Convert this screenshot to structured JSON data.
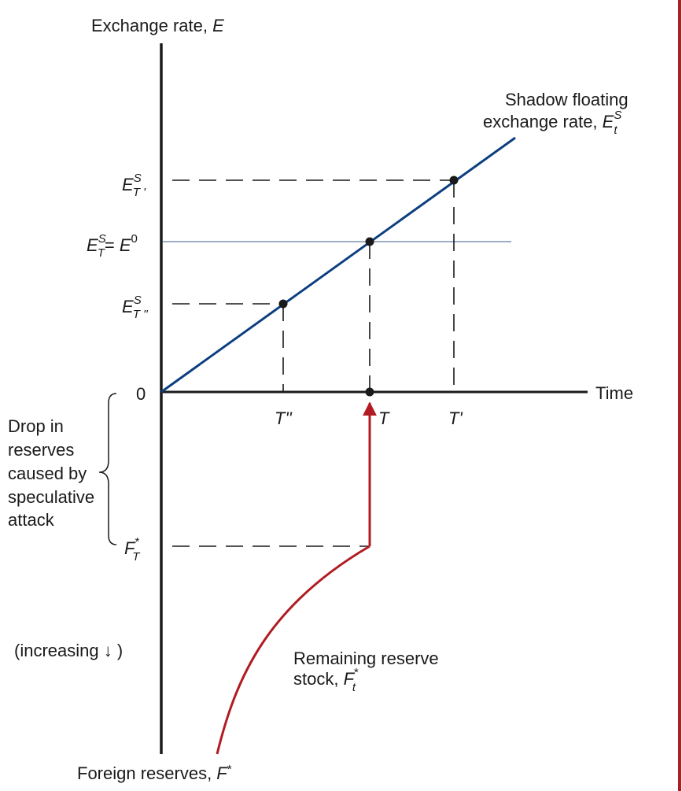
{
  "axes": {
    "y_label_text": "Exchange rate, ",
    "y_label_var": "E",
    "x_label": "Time",
    "zero": "0",
    "reserves_label_text": "Foreign reserves, ",
    "reserves_label_var": "F",
    "reserves_label_star": "*",
    "increasing_note": "(increasing ↓ )"
  },
  "shadow_rate": {
    "line1": "Shadow floating",
    "line2_text": "exchange rate, ",
    "var": "E",
    "sup": "S",
    "sub": "t"
  },
  "reserve_stock": {
    "line1": "Remaining reserve",
    "line2_text": "stock, ",
    "var": "F",
    "sup": "*",
    "sub": "t"
  },
  "y_ticks": {
    "e_t_prime": {
      "var": "E",
      "sup": "S",
      "sub": "T '"
    },
    "e_t_equals": {
      "var": "E",
      "sup": "S",
      "sub": "T",
      "eq": "= ",
      "rhs_var": "E",
      "rhs_sup": "0"
    },
    "e_t_double": {
      "var": "E",
      "sup": "S",
      "sub": "T ''"
    },
    "f_t": {
      "var": "F",
      "sup": "*",
      "sub": "T"
    }
  },
  "x_ticks": {
    "t_double_prime": "T''",
    "t": "T",
    "t_prime": "T'"
  },
  "brace_label": [
    "Drop in",
    "reserves",
    "caused by",
    "speculative",
    "attack"
  ],
  "colors": {
    "axis": "#1a1a1a",
    "shadow_line": "#0d3f80",
    "horizontal_line": "#7f93b5",
    "reserve_curve": "#b01c22",
    "right_border": "#b01c22"
  }
}
